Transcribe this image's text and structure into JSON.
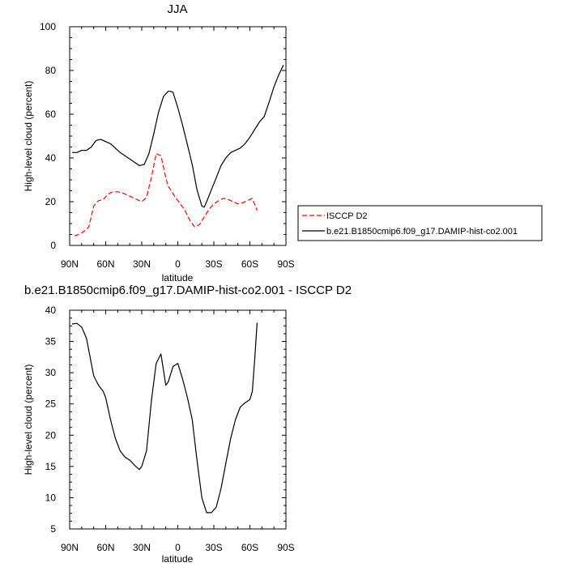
{
  "chart_data": [
    {
      "type": "line",
      "title": "JJA",
      "xlabel": "latitude",
      "ylabel": "High-level cloud (percent)",
      "xlim": [
        90,
        -90
      ],
      "ylim": [
        0,
        100
      ],
      "x_tick_values": [
        90,
        60,
        30,
        0,
        -30,
        -60,
        -90
      ],
      "x_tick_labels": [
        "90N",
        "60N",
        "30N",
        "0",
        "30S",
        "60S",
        "90S"
      ],
      "y_tick_values": [
        0,
        20,
        40,
        60,
        80,
        100
      ],
      "y_tick_labels": [
        "0",
        "20",
        "40",
        "60",
        "80",
        "100"
      ],
      "legend_position": "outside-right",
      "series": [
        {
          "name": "ISCCP D2",
          "color": "#ff0000",
          "dashed": true,
          "x": [
            86,
            82,
            78,
            74,
            70,
            66,
            62,
            58,
            54,
            50,
            46,
            42,
            38,
            34,
            30,
            26,
            22,
            18,
            14,
            10,
            8,
            6,
            2,
            -2,
            -6,
            -10,
            -14,
            -18,
            -22,
            -26,
            -30,
            -34,
            -38,
            -42,
            -46,
            -50,
            -54,
            -58,
            -62,
            -66
          ],
          "values": [
            4.5,
            5,
            6.5,
            8.5,
            18,
            20.5,
            21,
            23.5,
            24.5,
            24.5,
            24,
            23,
            22,
            21,
            20,
            22,
            31,
            42,
            41,
            31,
            27,
            25.5,
            22,
            19,
            16,
            11.5,
            8.5,
            9.5,
            13,
            16.5,
            19,
            20.5,
            21.5,
            21,
            20,
            19,
            19.5,
            20.5,
            21.5,
            16
          ]
        },
        {
          "name": "b.e21.B1850cmip6.f09_g17.DAMIP-hist-co2.001",
          "color": "#000000",
          "dashed": false,
          "x": [
            88,
            84,
            80,
            76,
            72,
            68,
            64,
            60,
            56,
            52,
            48,
            44,
            40,
            36,
            32,
            28,
            24,
            20,
            16,
            12,
            8,
            6,
            4,
            0,
            -4,
            -8,
            -12,
            -16,
            -20,
            -22,
            -24,
            -28,
            -32,
            -36,
            -40,
            -44,
            -48,
            -52,
            -56,
            -60,
            -64,
            -68,
            -72,
            -76,
            -80,
            -84,
            -88
          ],
          "values": [
            42.5,
            42.5,
            43.5,
            43.5,
            45,
            48,
            48.5,
            47.5,
            46.5,
            44.5,
            42.5,
            41,
            39.5,
            38,
            36.5,
            37,
            42,
            51,
            61,
            68,
            70.5,
            70.5,
            70,
            63,
            55,
            46,
            37,
            25.5,
            18,
            17.5,
            20,
            25.5,
            31,
            36.5,
            40,
            42.5,
            43.5,
            44.5,
            46.5,
            49.5,
            53,
            56.5,
            59,
            65.5,
            72.5,
            78,
            82.5
          ]
        }
      ]
    },
    {
      "type": "line",
      "title": "b.e21.B1850cmip6.f09_g17.DAMIP-hist-co2.001 - ISCCP D2",
      "xlabel": "latitude",
      "ylabel": "High-level cloud (percent)",
      "xlim": [
        90,
        -90
      ],
      "ylim": [
        5,
        40
      ],
      "x_tick_values": [
        90,
        60,
        30,
        0,
        -30,
        -60,
        -90
      ],
      "x_tick_labels": [
        "90N",
        "60N",
        "30N",
        "0",
        "30S",
        "60S",
        "90S"
      ],
      "y_tick_values": [
        5,
        10,
        15,
        20,
        25,
        30,
        35,
        40
      ],
      "y_tick_labels": [
        "5",
        "10",
        "15",
        "20",
        "25",
        "30",
        "35",
        "40"
      ],
      "series": [
        {
          "color": "#000000",
          "dashed": false,
          "x": [
            88,
            84,
            80,
            76,
            72,
            70,
            66,
            62,
            60,
            56,
            52,
            48,
            44,
            40,
            36,
            32,
            30,
            26,
            22,
            18,
            14,
            10,
            8,
            4,
            0,
            -4,
            -8,
            -12,
            -16,
            -20,
            -24,
            -28,
            -32,
            -36,
            -40,
            -44,
            -48,
            -52,
            -56,
            -60,
            -62,
            -64,
            -66
          ],
          "values": [
            37.8,
            37.9,
            37.3,
            35.5,
            31.5,
            29.5,
            28,
            27,
            26,
            22.5,
            19.5,
            17.5,
            16.5,
            16,
            15.2,
            14.5,
            15,
            17.5,
            25.5,
            31.5,
            33,
            28,
            28.5,
            31,
            31.5,
            29,
            26,
            22.5,
            16,
            10,
            7.6,
            7.6,
            8.5,
            11.5,
            15.5,
            19.5,
            22.5,
            24.5,
            25.2,
            25.7,
            27,
            32,
            38
          ]
        }
      ]
    }
  ]
}
